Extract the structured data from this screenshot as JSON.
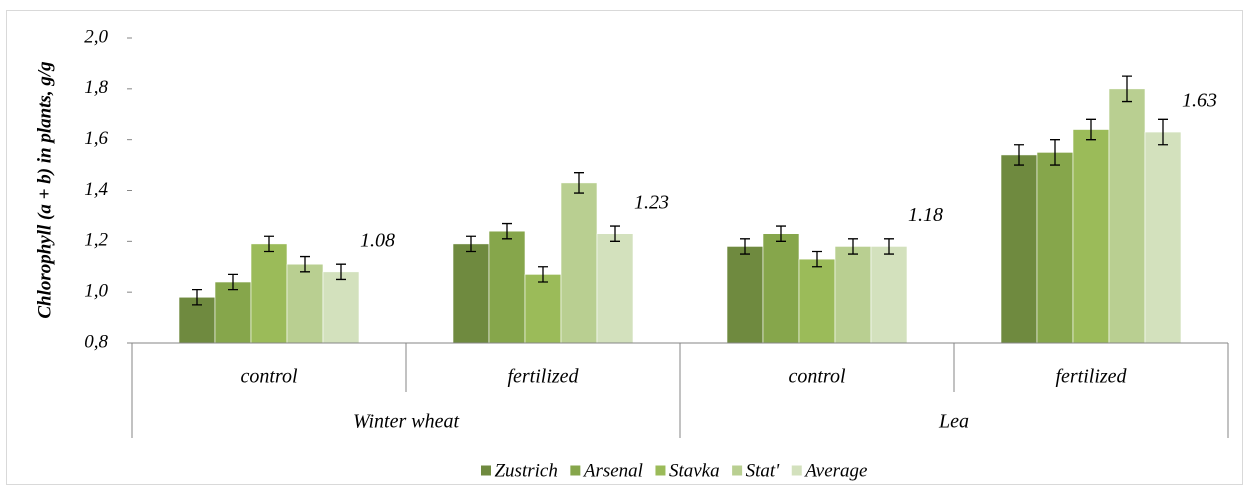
{
  "chart_data": {
    "type": "bar",
    "y_label": "Chlorophyll (a + b) in plants, g/g",
    "categories": [
      "control",
      "fertilized",
      "control",
      "fertilized"
    ],
    "category_groups": [
      "Winter wheat",
      "Lea"
    ],
    "series": [
      {
        "name": "Zustrich",
        "color": "#6f8a3f",
        "values": [
          0.98,
          1.19,
          1.18,
          1.54
        ],
        "errors": [
          0.03,
          0.03,
          0.03,
          0.04
        ]
      },
      {
        "name": "Arsenal",
        "color": "#86a64b",
        "values": [
          1.04,
          1.24,
          1.23,
          1.55
        ],
        "errors": [
          0.03,
          0.03,
          0.03,
          0.05
        ]
      },
      {
        "name": "Stavka",
        "color": "#9bbb59",
        "values": [
          1.19,
          1.07,
          1.13,
          1.64
        ],
        "errors": [
          0.03,
          0.03,
          0.03,
          0.04
        ]
      },
      {
        "name": "Stat'",
        "color": "#b9cf91",
        "values": [
          1.11,
          1.43,
          1.18,
          1.8
        ],
        "errors": [
          0.03,
          0.04,
          0.03,
          0.05
        ]
      },
      {
        "name": "Average",
        "color": "#d3e1bd",
        "values": [
          1.08,
          1.23,
          1.18,
          1.63
        ],
        "errors": [
          0.03,
          0.03,
          0.03,
          0.05
        ],
        "show_value_labels": true
      }
    ],
    "ylim": [
      0.8,
      2.0
    ],
    "yticks": [
      {
        "value": 0.8,
        "label": "0,8"
      },
      {
        "value": 1.0,
        "label": "1,0"
      },
      {
        "value": 1.2,
        "label": "1,2"
      },
      {
        "value": 1.4,
        "label": "1,4"
      },
      {
        "value": 1.6,
        "label": "1,6"
      },
      {
        "value": 1.8,
        "label": "1,8"
      },
      {
        "value": 2.0,
        "label": "2,0"
      }
    ],
    "grid": false,
    "legend": "bottom"
  }
}
